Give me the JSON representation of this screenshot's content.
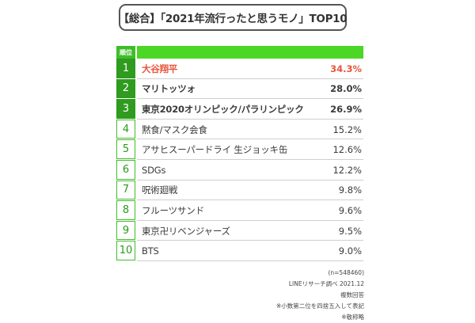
{
  "title": "【総合】「2021年流行ったと思うモノ」TOP10",
  "header": {
    "rank_label": "順位"
  },
  "colors": {
    "accent_green": "#4cd626",
    "dark_green": "#2f9b1f",
    "highlight_red": "#e8543c"
  },
  "chart_data": {
    "type": "table",
    "title": "【総合】「2021年流行ったと思うモノ」TOP10",
    "columns": [
      "順位",
      "",
      ""
    ],
    "rows": [
      {
        "rank": "1",
        "item": "大谷翔平",
        "value": "34.3%"
      },
      {
        "rank": "2",
        "item": "マリトッツォ",
        "value": "28.0%"
      },
      {
        "rank": "3",
        "item": "東京2020オリンピック/パラリンピック",
        "value": "26.9%"
      },
      {
        "rank": "4",
        "item": "黙食/マスク会食",
        "value": "15.2%"
      },
      {
        "rank": "5",
        "item": "アサヒスーパードライ 生ジョッキ缶",
        "value": "12.6%"
      },
      {
        "rank": "6",
        "item": "SDGs",
        "value": "12.2%"
      },
      {
        "rank": "7",
        "item": "呪術廻戦",
        "value": "9.8%"
      },
      {
        "rank": "8",
        "item": "フルーツサンド",
        "value": "9.6%"
      },
      {
        "rank": "9",
        "item": "東京卍リベンジャーズ",
        "value": "9.5%"
      },
      {
        "rank": "10",
        "item": "BTS",
        "value": "9.0%"
      }
    ]
  },
  "notes": [
    "(n=548460)",
    "LINEリサーチ調べ 2021.12",
    "複数回答",
    "※小数第二位を四捨五入して表記",
    "※敬称略"
  ]
}
